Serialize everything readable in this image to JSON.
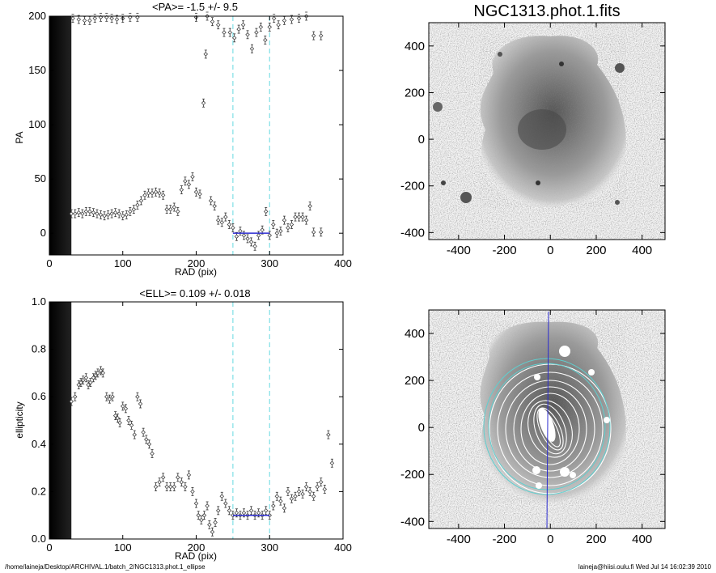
{
  "footer": {
    "left": "/home/laineja/Desktop/ARCHIVAL.1/batch_2/NGC1313.phot.1_ellipse",
    "right": "laineja@hiisi.oulu.fi  Wed Jul 14 16:02:39 2010"
  },
  "colors": {
    "axis": "#000000",
    "points": "#333333",
    "marker": "#444444",
    "dashed": "#7fdfe6",
    "fit": "#2b2bd0",
    "ring": "#5fcfcf",
    "background": "#ffffff"
  },
  "chart_data": [
    {
      "type": "scatter",
      "title": "<PA>=  -1.5 +/-   9.5",
      "xlabel": "RAD (pix)",
      "ylabel": "PA",
      "xlim": [
        0,
        400
      ],
      "ylim": [
        -20,
        200
      ],
      "xticks": [
        0,
        100,
        200,
        300,
        400
      ],
      "yticks": [
        0,
        50,
        100,
        150,
        200
      ],
      "inner_band_x": [
        0,
        30
      ],
      "fit_range": [
        250,
        300
      ],
      "mean_value": -1.5,
      "mean_error": 9.5,
      "series": [
        {
          "points": [
            [
              32,
              198
            ],
            [
              40,
              197
            ],
            [
              48,
              196
            ],
            [
              55,
              196
            ],
            [
              62,
              198
            ],
            [
              70,
              199
            ],
            [
              78,
              199
            ],
            [
              85,
              198
            ],
            [
              92,
              197
            ],
            [
              100,
              198
            ],
            [
              110,
              199
            ],
            [
              120,
              199
            ],
            [
              30,
              18
            ],
            [
              35,
              18
            ],
            [
              40,
              19
            ],
            [
              45,
              18
            ],
            [
              50,
              20
            ],
            [
              55,
              20
            ],
            [
              60,
              19
            ],
            [
              65,
              18
            ],
            [
              70,
              17
            ],
            [
              75,
              16
            ],
            [
              80,
              17
            ],
            [
              85,
              18
            ],
            [
              90,
              19
            ],
            [
              95,
              18
            ],
            [
              100,
              16
            ],
            [
              105,
              17
            ],
            [
              110,
              20
            ],
            [
              115,
              22
            ],
            [
              120,
              26
            ],
            [
              125,
              30
            ],
            [
              130,
              35
            ],
            [
              135,
              37
            ],
            [
              140,
              37
            ],
            [
              145,
              38
            ],
            [
              150,
              37
            ],
            [
              155,
              35
            ],
            [
              160,
              22
            ],
            [
              165,
              22
            ],
            [
              170,
              24
            ],
            [
              175,
              20
            ],
            [
              180,
              40
            ],
            [
              185,
              48
            ],
            [
              190,
              45
            ],
            [
              195,
              52
            ],
            [
              200,
              38
            ],
            [
              205,
              36
            ],
            [
              210,
              120
            ],
            [
              213,
              165
            ],
            [
              220,
              30
            ],
            [
              225,
              25
            ],
            [
              230,
              12
            ],
            [
              235,
              10
            ],
            [
              240,
              15
            ],
            [
              245,
              8
            ],
            [
              250,
              5
            ],
            [
              255,
              -3
            ],
            [
              260,
              2
            ],
            [
              265,
              -2
            ],
            [
              270,
              -5
            ],
            [
              275,
              -8
            ],
            [
              280,
              -12
            ],
            [
              285,
              -2
            ],
            [
              290,
              3
            ],
            [
              295,
              20
            ],
            [
              300,
              -2
            ],
            [
              305,
              8
            ],
            [
              310,
              0
            ],
            [
              315,
              2
            ],
            [
              320,
              12
            ],
            [
              325,
              5
            ],
            [
              330,
              8
            ],
            [
              335,
              15
            ],
            [
              340,
              15
            ],
            [
              345,
              15
            ],
            [
              350,
              12
            ],
            [
              355,
              25
            ],
            [
              360,
              1
            ],
            [
              370,
              1
            ],
            [
              200,
              199
            ],
            [
              215,
              200
            ],
            [
              222,
              195
            ],
            [
              230,
              192
            ],
            [
              238,
              185
            ],
            [
              246,
              185
            ],
            [
              252,
              180
            ],
            [
              258,
              188
            ],
            [
              264,
              192
            ],
            [
              270,
              183
            ],
            [
              276,
              170
            ],
            [
              282,
              185
            ],
            [
              288,
              190
            ],
            [
              294,
              178
            ],
            [
              300,
              190
            ],
            [
              306,
              198
            ],
            [
              312,
              192
            ],
            [
              320,
              196
            ],
            [
              330,
              197
            ],
            [
              340,
              198
            ],
            [
              350,
              200
            ],
            [
              360,
              182
            ],
            [
              370,
              182
            ]
          ]
        },
        {
          "name": "",
          "fit_x": [
            250,
            300
          ],
          "fit_y": [
            0,
            0
          ]
        }
      ]
    },
    {
      "type": "scatter",
      "title": "<ELL>= 0.109 +/-  0.018",
      "xlabel": "RAD (pix)",
      "ylabel": "ellipticity",
      "xlim": [
        0,
        400
      ],
      "ylim": [
        0,
        1.0
      ],
      "xticks": [
        0,
        100,
        200,
        300,
        400
      ],
      "yticks": [
        0.0,
        0.2,
        0.4,
        0.6,
        0.8,
        1.0
      ],
      "inner_band_x": [
        0,
        30
      ],
      "fit_range": [
        250,
        300
      ],
      "mean_value": 0.109,
      "mean_error": 0.018,
      "series": [
        {
          "points": [
            [
              30,
              0.58
            ],
            [
              35,
              0.6
            ],
            [
              40,
              0.65
            ],
            [
              43,
              0.66
            ],
            [
              46,
              0.67
            ],
            [
              50,
              0.68
            ],
            [
              53,
              0.65
            ],
            [
              56,
              0.66
            ],
            [
              60,
              0.68
            ],
            [
              63,
              0.69
            ],
            [
              66,
              0.7
            ],
            [
              70,
              0.71
            ],
            [
              73,
              0.7
            ],
            [
              78,
              0.6
            ],
            [
              82,
              0.59
            ],
            [
              86,
              0.6
            ],
            [
              90,
              0.52
            ],
            [
              93,
              0.51
            ],
            [
              96,
              0.49
            ],
            [
              100,
              0.56
            ],
            [
              104,
              0.55
            ],
            [
              108,
              0.5
            ],
            [
              112,
              0.48
            ],
            [
              116,
              0.44
            ],
            [
              120,
              0.6
            ],
            [
              124,
              0.57
            ],
            [
              128,
              0.45
            ],
            [
              132,
              0.42
            ],
            [
              136,
              0.4
            ],
            [
              140,
              0.36
            ],
            [
              145,
              0.22
            ],
            [
              150,
              0.24
            ],
            [
              155,
              0.26
            ],
            [
              160,
              0.22
            ],
            [
              165,
              0.22
            ],
            [
              170,
              0.22
            ],
            [
              175,
              0.26
            ],
            [
              180,
              0.24
            ],
            [
              185,
              0.22
            ],
            [
              190,
              0.27
            ],
            [
              195,
              0.2
            ],
            [
              200,
              0.15
            ],
            [
              203,
              0.1
            ],
            [
              207,
              0.08
            ],
            [
              211,
              0.1
            ],
            [
              215,
              0.14
            ],
            [
              218,
              0.06
            ],
            [
              222,
              0.03
            ],
            [
              226,
              0.07
            ],
            [
              230,
              0.12
            ],
            [
              235,
              0.18
            ],
            [
              240,
              0.15
            ],
            [
              245,
              0.12
            ],
            [
              250,
              0.1
            ],
            [
              255,
              0.11
            ],
            [
              260,
              0.1
            ],
            [
              265,
              0.11
            ],
            [
              270,
              0.1
            ],
            [
              275,
              0.12
            ],
            [
              280,
              0.1
            ],
            [
              285,
              0.11
            ],
            [
              290,
              0.1
            ],
            [
              295,
              0.12
            ],
            [
              300,
              0.1
            ],
            [
              305,
              0.14
            ],
            [
              310,
              0.18
            ],
            [
              315,
              0.16
            ],
            [
              320,
              0.13
            ],
            [
              325,
              0.2
            ],
            [
              330,
              0.17
            ],
            [
              335,
              0.18
            ],
            [
              340,
              0.2
            ],
            [
              345,
              0.19
            ],
            [
              350,
              0.22
            ],
            [
              355,
              0.2
            ],
            [
              360,
              0.18
            ],
            [
              365,
              0.22
            ],
            [
              370,
              0.24
            ],
            [
              375,
              0.21
            ],
            [
              380,
              0.44
            ],
            [
              385,
              0.32
            ]
          ]
        },
        {
          "name": "",
          "fit_x": [
            250,
            300
          ],
          "fit_y": [
            0.1,
            0.1
          ]
        }
      ]
    }
  ],
  "image_panels": {
    "top": {
      "title": "NGC1313.phot.1.fits",
      "xticks": [
        -400,
        -200,
        0,
        200,
        400
      ],
      "yticks": [
        400,
        200,
        0,
        -200,
        -400
      ],
      "xlim": [
        -530,
        500
      ],
      "ylim": [
        -430,
        500
      ]
    },
    "bottom": {
      "title": "",
      "xticks": [
        -400,
        -200,
        0,
        200,
        400
      ],
      "yticks": [
        400,
        200,
        0,
        -200,
        -400
      ],
      "xlim": [
        -530,
        500
      ],
      "ylim": [
        -430,
        500
      ]
    }
  }
}
